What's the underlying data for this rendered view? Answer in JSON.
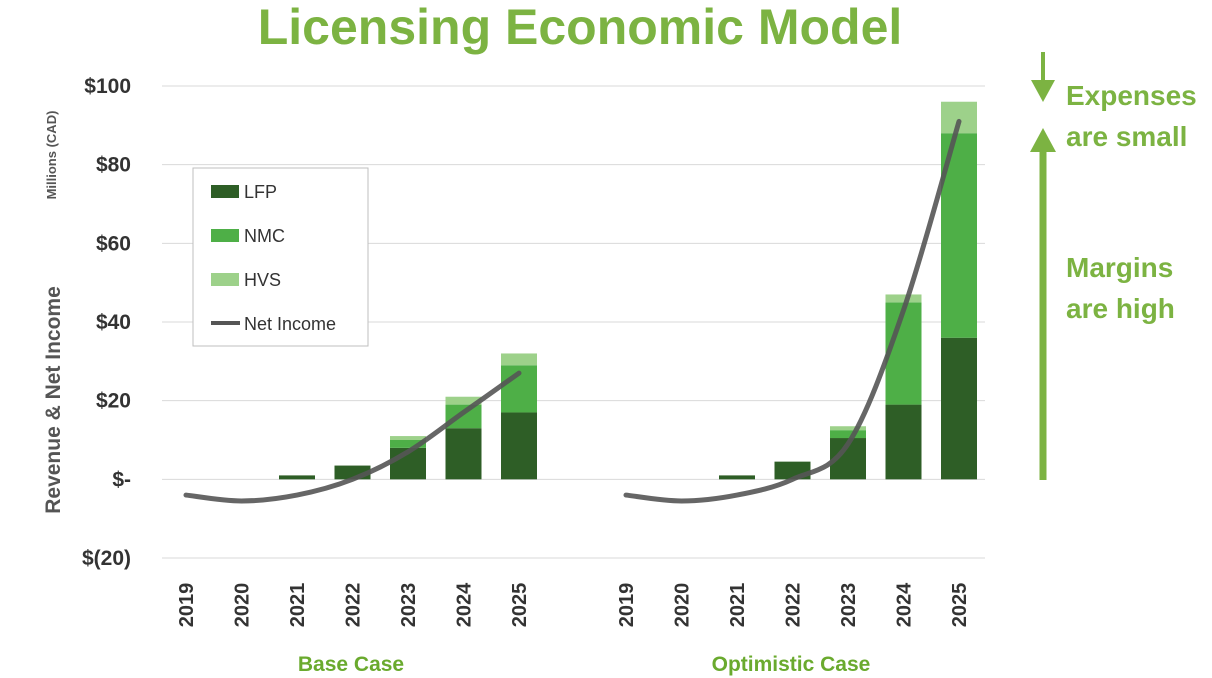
{
  "title": "Licensing Economic Model",
  "chart_data": {
    "type": "bar",
    "stacked": true,
    "title": "Licensing Economic Model",
    "ylabel": "Revenue & Net Income",
    "ylabel_unit": "Millions (CAD)",
    "ylim": [
      -20,
      100
    ],
    "yticks": [
      100,
      80,
      60,
      40,
      20,
      0,
      -20
    ],
    "ytick_labels": [
      "$100",
      "$80",
      "$60",
      "$40",
      "$20",
      "$-",
      "$(20)"
    ],
    "legend": [
      "LFP",
      "NMC",
      "HVS",
      "Net Income"
    ],
    "colors": {
      "LFP": "#2e5e26",
      "NMC": "#4eaf47",
      "HVS": "#9dd18a",
      "Net Income": "#555555",
      "accent": "#7cb342"
    },
    "groups": [
      {
        "name": "Base Case",
        "categories": [
          "2019",
          "2020",
          "2021",
          "2022",
          "2023",
          "2024",
          "2025"
        ],
        "series": [
          {
            "name": "LFP",
            "values": [
              0,
              0,
              1,
              3.5,
              8,
              13,
              17
            ]
          },
          {
            "name": "NMC",
            "values": [
              0,
              0,
              0,
              0,
              2,
              6,
              12
            ]
          },
          {
            "name": "HVS",
            "values": [
              0,
              0,
              0,
              0,
              1,
              2,
              3
            ]
          }
        ],
        "net_income": [
          -4,
          -5.5,
          -4,
          0,
          7,
          17,
          27
        ]
      },
      {
        "name": "Optimistic Case",
        "categories": [
          "2019",
          "2020",
          "2021",
          "2022",
          "2023",
          "2024",
          "2025"
        ],
        "series": [
          {
            "name": "LFP",
            "values": [
              0,
              0,
              1,
              4.5,
              10.5,
              19,
              36
            ]
          },
          {
            "name": "NMC",
            "values": [
              0,
              0,
              0,
              0,
              2,
              26,
              52
            ]
          },
          {
            "name": "HVS",
            "values": [
              0,
              0,
              0,
              0,
              1,
              2,
              8
            ]
          }
        ],
        "net_income": [
          -4,
          -5.5,
          -4,
          0,
          9,
          43,
          91
        ]
      }
    ]
  },
  "annotations": {
    "expenses_line1": "Expenses",
    "expenses_line2": "are small",
    "margins_line1": "Margins",
    "margins_line2": "are high"
  }
}
